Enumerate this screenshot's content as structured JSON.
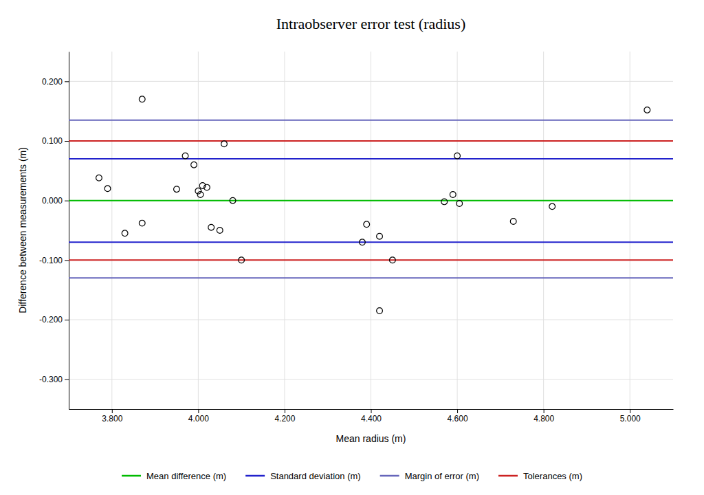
{
  "chart_data": {
    "type": "scatter",
    "title": "Intraobserver error test (radius)",
    "xlabel": "Mean radius (m)",
    "ylabel": "Difference between measurements (m)",
    "xlim": [
      3.7,
      5.1
    ],
    "ylim": [
      -0.35,
      0.25
    ],
    "xticks": [
      {
        "value": 3.8,
        "label": "3.800"
      },
      {
        "value": 4.0,
        "label": "4.000"
      },
      {
        "value": 4.2,
        "label": "4.200"
      },
      {
        "value": 4.4,
        "label": "4.400"
      },
      {
        "value": 4.6,
        "label": "4.600"
      },
      {
        "value": 4.8,
        "label": "4.800"
      },
      {
        "value": 5.0,
        "label": "5.000"
      }
    ],
    "yticks": [
      {
        "value": -0.3,
        "label": "-0.300"
      },
      {
        "value": -0.2,
        "label": "-0.200"
      },
      {
        "value": -0.1,
        "label": "-0.100"
      },
      {
        "value": 0.0,
        "label": "0.000"
      },
      {
        "value": 0.1,
        "label": "0.100"
      },
      {
        "value": 0.2,
        "label": "0.200"
      }
    ],
    "x": [
      3.77,
      3.79,
      3.83,
      3.87,
      3.87,
      3.95,
      3.97,
      3.99,
      4.0,
      4.005,
      4.01,
      4.02,
      4.03,
      4.05,
      4.06,
      4.08,
      4.1,
      4.38,
      4.39,
      4.42,
      4.45,
      4.57,
      4.59,
      4.6,
      4.605,
      4.73,
      4.82,
      5.04,
      4.42
    ],
    "values": [
      0.038,
      0.02,
      -0.055,
      -0.038,
      0.17,
      0.019,
      0.075,
      0.06,
      0.016,
      0.01,
      0.025,
      0.022,
      -0.045,
      -0.05,
      0.095,
      0.0,
      -0.1,
      -0.07,
      -0.04,
      -0.06,
      -0.1,
      -0.002,
      0.01,
      0.075,
      -0.005,
      -0.035,
      -0.01,
      0.152,
      -0.185
    ],
    "color": "black",
    "marker": "circle",
    "reference_lines": [
      {
        "name": "Mean difference (m)",
        "color": "#00bb00",
        "values": [
          0.0
        ]
      },
      {
        "name": "Standard deviation (m)",
        "color": "#2222cc",
        "values": [
          0.07,
          -0.07
        ]
      },
      {
        "name": "Margin of error (m)",
        "color": "#6666bb",
        "values": [
          0.135,
          -0.13
        ]
      },
      {
        "name": "Tolerances (m)",
        "color": "#cc2222",
        "values": [
          0.1,
          -0.1
        ]
      }
    ],
    "grid": true,
    "legend": "bottom"
  }
}
